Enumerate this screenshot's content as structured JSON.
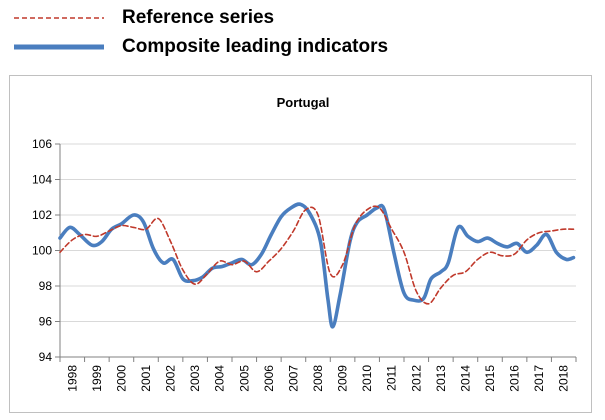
{
  "legend": {
    "reference_label": "Reference series",
    "cli_label": "Composite leading indicators"
  },
  "colors": {
    "reference": "#c0392b",
    "cli": "#4a7ebf",
    "grid": "#d9d9d9",
    "axis": "#808080"
  },
  "chart_data": {
    "type": "line",
    "title": "Portugal",
    "xlabel": "",
    "ylabel": "",
    "xlim": [
      1998,
      2019
    ],
    "ylim": [
      94,
      106
    ],
    "yticks": [
      94,
      96,
      98,
      100,
      102,
      104,
      106
    ],
    "xticks": [
      "1998",
      "1999",
      "2000",
      "2001",
      "2002",
      "2003",
      "2004",
      "2005",
      "2006",
      "2007",
      "2008",
      "2009",
      "2010",
      "2011",
      "2012",
      "2013",
      "2014",
      "2015",
      "2016",
      "2017",
      "2018"
    ],
    "grid": "horizontal",
    "legend_position": "top-left",
    "series": [
      {
        "name": "Reference series",
        "style": "dashed",
        "x": [
          1998.0,
          1998.5,
          1999.0,
          1999.5,
          2000.0,
          2000.5,
          2001.0,
          2001.5,
          2002.0,
          2002.5,
          2003.0,
          2003.5,
          2004.0,
          2004.5,
          2005.0,
          2005.5,
          2006.0,
          2006.5,
          2007.0,
          2007.5,
          2008.0,
          2008.5,
          2009.0,
          2009.5,
          2010.0,
          2010.5,
          2011.0,
          2011.5,
          2012.0,
          2012.5,
          2013.0,
          2013.5,
          2014.0,
          2014.5,
          2015.0,
          2015.5,
          2016.0,
          2016.5,
          2017.0,
          2017.5,
          2018.0,
          2018.5,
          2018.9
        ],
        "y": [
          99.9,
          100.6,
          100.9,
          100.8,
          101.1,
          101.4,
          101.3,
          101.2,
          101.8,
          100.5,
          98.9,
          98.1,
          98.7,
          99.4,
          99.2,
          99.4,
          98.8,
          99.4,
          100.1,
          101.1,
          102.3,
          102.0,
          98.7,
          99.2,
          101.4,
          102.3,
          102.4,
          101.2,
          99.9,
          97.7,
          97.0,
          97.9,
          98.6,
          98.8,
          99.5,
          99.9,
          99.7,
          99.8,
          100.6,
          101.0,
          101.1,
          101.2,
          101.2
        ]
      },
      {
        "name": "Composite leading indicators",
        "style": "solid",
        "x": [
          1998.0,
          1998.4,
          1998.8,
          1999.3,
          1999.7,
          2000.1,
          2000.5,
          2001.0,
          2001.4,
          2001.8,
          2002.2,
          2002.6,
          2003.0,
          2003.4,
          2003.8,
          2004.2,
          2004.6,
          2005.0,
          2005.4,
          2005.8,
          2006.2,
          2006.6,
          2007.0,
          2007.4,
          2007.8,
          2008.2,
          2008.6,
          2008.9,
          2009.1,
          2009.4,
          2009.8,
          2010.1,
          2010.5,
          2010.9,
          2011.2,
          2011.6,
          2012.0,
          2012.4,
          2012.8,
          2013.1,
          2013.5,
          2013.8,
          2014.2,
          2014.6,
          2015.0,
          2015.4,
          2015.8,
          2016.2,
          2016.6,
          2017.0,
          2017.4,
          2017.8,
          2018.2,
          2018.6,
          2018.9
        ],
        "y": [
          100.7,
          101.3,
          100.9,
          100.3,
          100.5,
          101.2,
          101.5,
          102.0,
          101.6,
          100.1,
          99.3,
          99.5,
          98.4,
          98.3,
          98.5,
          99.0,
          99.1,
          99.3,
          99.5,
          99.2,
          99.8,
          100.9,
          101.9,
          102.4,
          102.6,
          102.0,
          100.5,
          97.3,
          95.7,
          97.5,
          100.5,
          101.6,
          102.0,
          102.4,
          102.3,
          99.8,
          97.6,
          97.2,
          97.3,
          98.4,
          98.8,
          99.3,
          101.3,
          100.8,
          100.5,
          100.7,
          100.4,
          100.2,
          100.4,
          99.9,
          100.3,
          100.9,
          99.9,
          99.5,
          99.6
        ]
      }
    ]
  }
}
